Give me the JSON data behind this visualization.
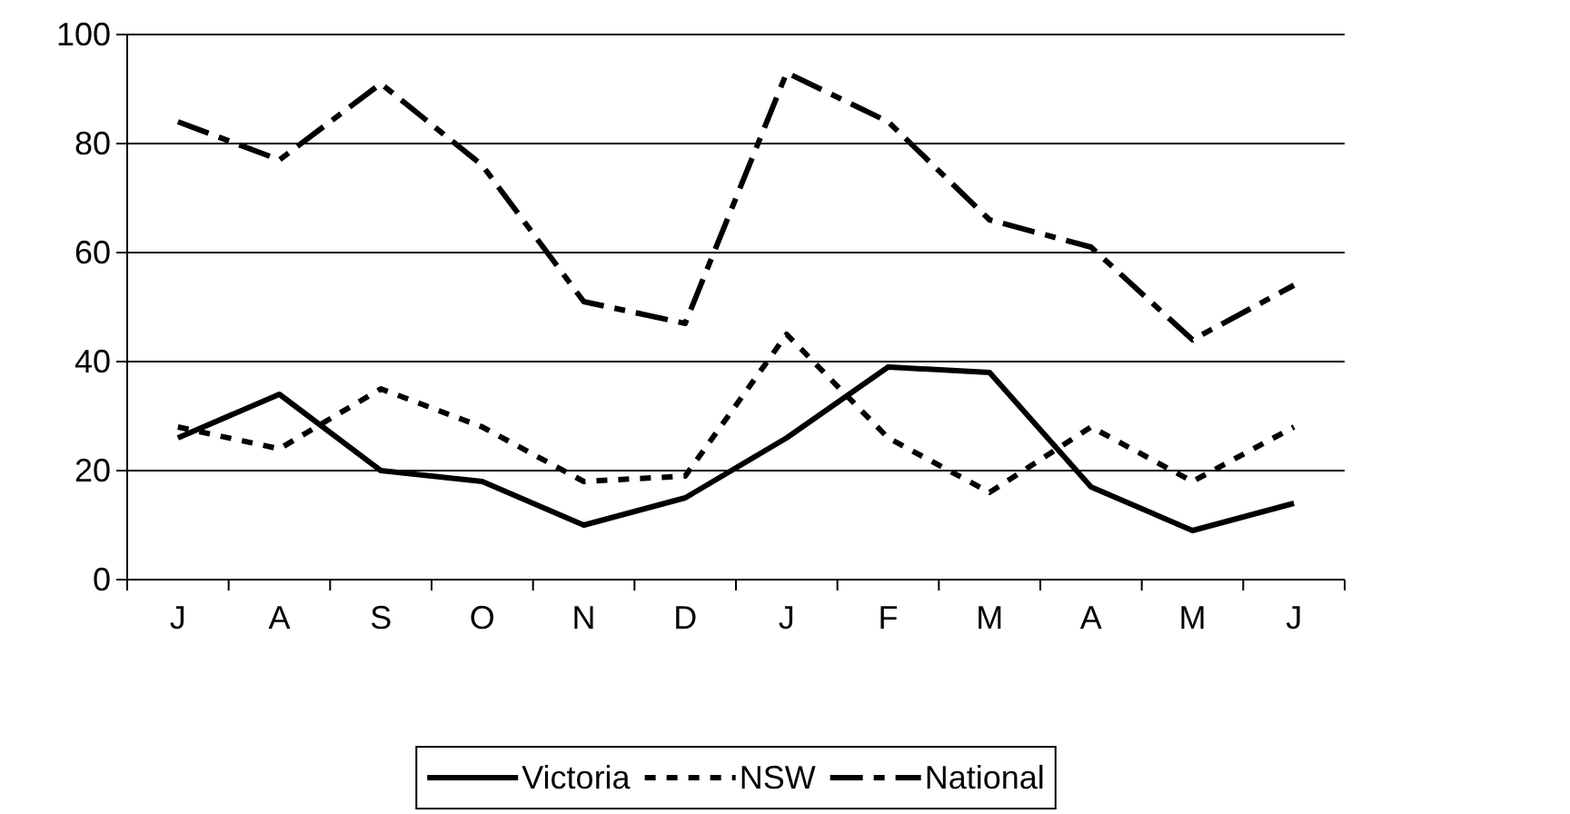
{
  "chart_data": {
    "type": "line",
    "categories": [
      "J",
      "A",
      "S",
      "O",
      "N",
      "D",
      "J",
      "F",
      "M",
      "A",
      "M",
      "J"
    ],
    "series": [
      {
        "name": "Victoria",
        "color": "#000000",
        "line_style": "solid",
        "values": [
          26,
          34,
          20,
          18,
          10,
          15,
          26,
          39,
          38,
          17,
          9,
          14
        ]
      },
      {
        "name": "NSW",
        "color": "#000000",
        "line_style": "dotted",
        "values": [
          28,
          24,
          35,
          28,
          18,
          19,
          45,
          26,
          16,
          28,
          18,
          28
        ]
      },
      {
        "name": "National",
        "color": "#000000",
        "line_style": "dashed",
        "values": [
          84,
          77,
          91,
          76,
          51,
          47,
          93,
          84,
          66,
          61,
          44,
          54
        ]
      }
    ],
    "ylim": [
      0,
      100
    ],
    "yticks": [
      0,
      20,
      40,
      60,
      80,
      100
    ],
    "grid": "y",
    "legend": "bottom",
    "marker": "none"
  }
}
